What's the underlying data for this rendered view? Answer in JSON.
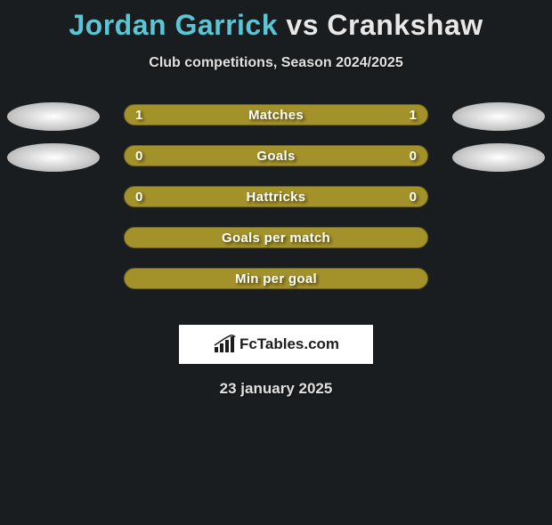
{
  "title": {
    "player1": "Jordan Garrick",
    "vs": "vs",
    "player2": "Crankshaw",
    "player1_color": "#5cc5d4",
    "vs_color": "#e8e8e8",
    "player2_color": "#e8e8e8"
  },
  "subtitle": "Club competitions, Season 2024/2025",
  "stats": [
    {
      "label": "Matches",
      "left_value": "1",
      "right_value": "1",
      "bar_color": "#a39129",
      "show_left_ellipse": true,
      "show_right_ellipse": true,
      "show_values": true
    },
    {
      "label": "Goals",
      "left_value": "0",
      "right_value": "0",
      "bar_color": "#a39129",
      "show_left_ellipse": true,
      "show_right_ellipse": true,
      "show_values": true
    },
    {
      "label": "Hattricks",
      "left_value": "0",
      "right_value": "0",
      "bar_color": "#a39129",
      "show_left_ellipse": false,
      "show_right_ellipse": false,
      "show_values": true
    },
    {
      "label": "Goals per match",
      "left_value": "",
      "right_value": "",
      "bar_color": "#a39129",
      "show_left_ellipse": false,
      "show_right_ellipse": false,
      "show_values": false
    },
    {
      "label": "Min per goal",
      "left_value": "",
      "right_value": "",
      "bar_color": "#a39129",
      "show_left_ellipse": false,
      "show_right_ellipse": false,
      "show_values": false
    }
  ],
  "logo_text": "FcTables.com",
  "date": "23 january 2025",
  "colors": {
    "background": "#1a1d1f",
    "ellipse_light": "#cccccc",
    "text_light": "#e0e0e0"
  }
}
